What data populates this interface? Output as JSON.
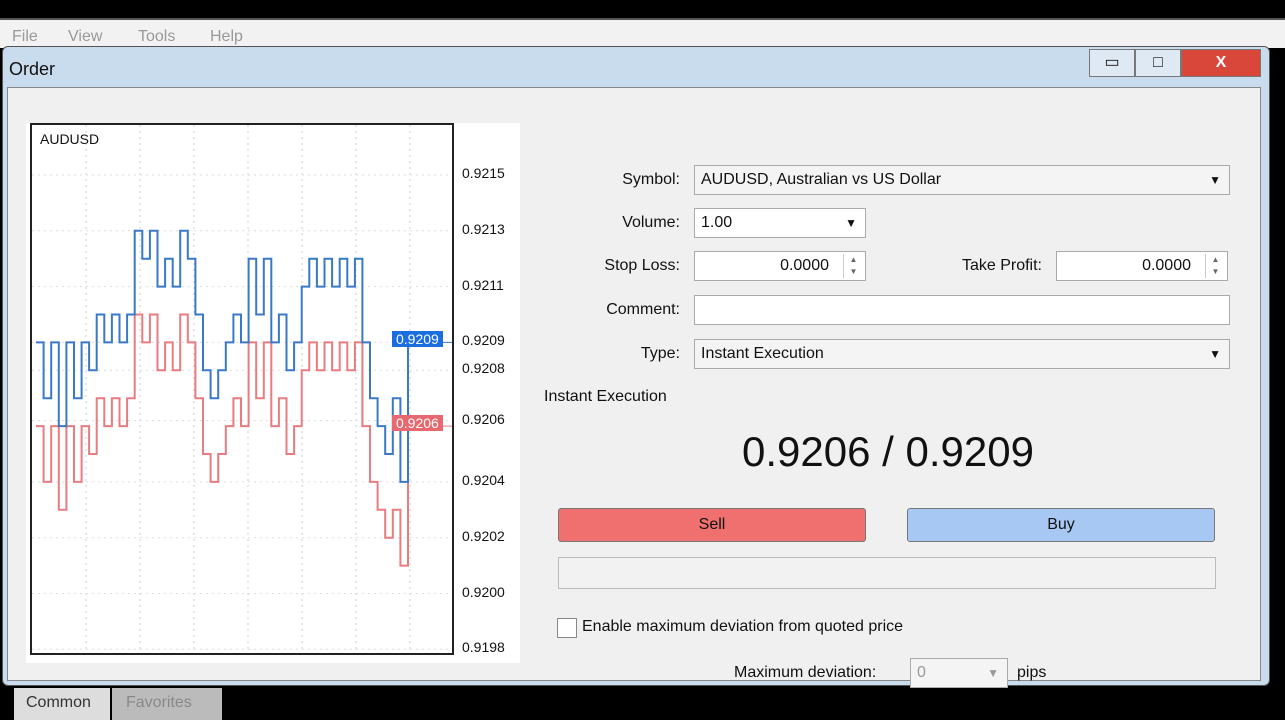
{
  "menu": [
    "File",
    "View",
    "Tools",
    "Help"
  ],
  "window": {
    "title": "Order",
    "minimize": "▭",
    "maximize": "□",
    "close": "X"
  },
  "chart_data": {
    "type": "line",
    "symbol": "AUDUSD",
    "ylim": [
      0.9197,
      0.9216
    ],
    "yticks": [
      "0.9215",
      "0.9213",
      "0.9211",
      "0.9209",
      "0.9208",
      "0.9206",
      "0.9204",
      "0.9202",
      "0.9200",
      "0.9198"
    ],
    "ytick_values": [
      0.9215,
      0.9213,
      0.9211,
      0.9209,
      0.9208,
      0.92062,
      0.9204,
      0.9202,
      0.92,
      0.9198
    ],
    "grid": true,
    "series": [
      {
        "color": "#3a78c8",
        "values": [
          0.9209,
          0.9207,
          0.9209,
          0.9206,
          0.9209,
          0.9207,
          0.9209,
          0.9208,
          0.921,
          0.9209,
          0.921,
          0.9209,
          0.921,
          0.9213,
          0.9212,
          0.9213,
          0.9211,
          0.9212,
          0.9211,
          0.9213,
          0.9212,
          0.921,
          0.9208,
          0.9207,
          0.9208,
          0.9209,
          0.921,
          0.9209,
          0.9212,
          0.921,
          0.9212,
          0.9209,
          0.921,
          0.9208,
          0.9209,
          0.9211,
          0.9212,
          0.9211,
          0.9212,
          0.9211,
          0.9212,
          0.9211,
          0.9212,
          0.9209,
          0.9207,
          0.9206,
          0.9205,
          0.9207,
          0.9204,
          0.9209
        ]
      },
      {
        "color": "#e87c80",
        "values": [
          0.9206,
          0.9204,
          0.9206,
          0.9203,
          0.9206,
          0.9204,
          0.9206,
          0.9205,
          0.9207,
          0.9206,
          0.9207,
          0.9206,
          0.9207,
          0.921,
          0.9209,
          0.921,
          0.9208,
          0.9209,
          0.9208,
          0.921,
          0.9209,
          0.9207,
          0.9205,
          0.9204,
          0.9205,
          0.9206,
          0.9207,
          0.9206,
          0.9209,
          0.9207,
          0.9209,
          0.9206,
          0.9207,
          0.9205,
          0.9206,
          0.9208,
          0.9209,
          0.9208,
          0.9209,
          0.9208,
          0.9209,
          0.9208,
          0.9209,
          0.9206,
          0.9204,
          0.9203,
          0.9202,
          0.9203,
          0.9201,
          0.9206
        ]
      }
    ],
    "ask_label": "0.9209",
    "bid_label": "0.9206"
  },
  "form": {
    "symbol_label": "Symbol:",
    "symbol_value": "AUDUSD, Australian vs US Dollar",
    "volume_label": "Volume:",
    "volume_value": "1.00",
    "sl_label": "Stop Loss:",
    "sl_value": "0.0000",
    "tp_label": "Take Profit:",
    "tp_value": "0.0000",
    "comment_label": "Comment:",
    "comment_value": "",
    "type_label": "Type:",
    "type_value": "Instant Execution"
  },
  "exec": {
    "heading": "Instant Execution",
    "quote": "0.9206 / 0.9209",
    "sell": "Sell",
    "buy": "Buy",
    "deviation_check": "Enable maximum deviation from quoted price",
    "deviation_label": "Maximum deviation:",
    "deviation_value": "0",
    "deviation_unit": "pips"
  },
  "tabs": [
    "Common",
    "Favorites"
  ]
}
